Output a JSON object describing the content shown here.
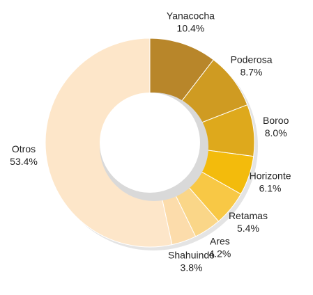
{
  "chart_data": {
    "type": "pie",
    "categories": [
      "Yanacocha",
      "Poderosa",
      "Boroo",
      "Horizonte",
      "Retamas",
      "Ares",
      "Shahuindo",
      "Otros"
    ],
    "values": [
      10.4,
      8.7,
      8.0,
      6.1,
      5.4,
      4.2,
      3.8,
      53.4
    ],
    "value_labels": [
      "10.4%",
      "8.7%",
      "8.0%",
      "6.1%",
      "5.4%",
      "4.2%",
      "3.8%",
      "53.4%"
    ],
    "colors": [
      "#b8862a",
      "#cf9b22",
      "#dea91c",
      "#f3bb0c",
      "#f8c845",
      "#fad688",
      "#fcdcab",
      "#fde6c9"
    ]
  }
}
